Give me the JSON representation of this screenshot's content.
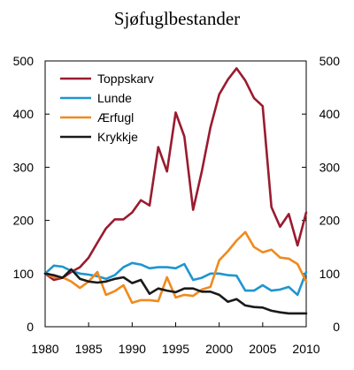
{
  "chart_data": {
    "type": "line",
    "title": "Sjøfuglbestander",
    "xlabel": "",
    "ylabel": "",
    "xlim": [
      1980,
      2010
    ],
    "ylim": [
      0,
      500
    ],
    "y2lim": [
      0,
      500
    ],
    "x_ticks": [
      1980,
      1985,
      1990,
      1995,
      2000,
      2005,
      2010
    ],
    "y_ticks": [
      0,
      100,
      200,
      300,
      400,
      500
    ],
    "y2_ticks": [
      0,
      100,
      200,
      300,
      400,
      500
    ],
    "grid": false,
    "legend_placement": "top-left",
    "x": [
      1980,
      1981,
      1982,
      1983,
      1984,
      1985,
      1986,
      1987,
      1988,
      1989,
      1990,
      1991,
      1992,
      1993,
      1994,
      1995,
      1996,
      1997,
      1998,
      1999,
      2000,
      2001,
      2002,
      2003,
      2004,
      2005,
      2006,
      2007,
      2008,
      2009,
      2010
    ],
    "series": [
      {
        "name": "Toppskarv",
        "color": "#9a1b2f",
        "values": [
          100,
          88,
          92,
          103,
          112,
          130,
          158,
          185,
          202,
          202,
          215,
          238,
          228,
          338,
          292,
          403,
          358,
          220,
          292,
          375,
          437,
          465,
          486,
          463,
          430,
          415,
          225,
          188,
          212,
          153,
          215
        ]
      },
      {
        "name": "Lunde",
        "color": "#1f95d0",
        "values": [
          100,
          115,
          113,
          105,
          100,
          98,
          95,
          90,
          97,
          112,
          120,
          117,
          110,
          112,
          112,
          110,
          118,
          88,
          92,
          100,
          100,
          97,
          96,
          68,
          68,
          78,
          68,
          70,
          75,
          60,
          103
        ]
      },
      {
        "name": "Ærfugl",
        "color": "#f08a1e",
        "values": [
          100,
          93,
          93,
          85,
          73,
          85,
          103,
          60,
          67,
          78,
          45,
          50,
          50,
          48,
          93,
          55,
          60,
          58,
          70,
          75,
          125,
          142,
          162,
          178,
          150,
          140,
          145,
          130,
          128,
          118,
          85
        ]
      },
      {
        "name": "Krykkje",
        "color": "#1a1a1a",
        "values": [
          100,
          97,
          92,
          108,
          90,
          85,
          83,
          85,
          90,
          93,
          82,
          88,
          62,
          72,
          68,
          65,
          72,
          72,
          66,
          66,
          60,
          47,
          52,
          40,
          37,
          36,
          30,
          27,
          25,
          25,
          25
        ]
      }
    ]
  }
}
